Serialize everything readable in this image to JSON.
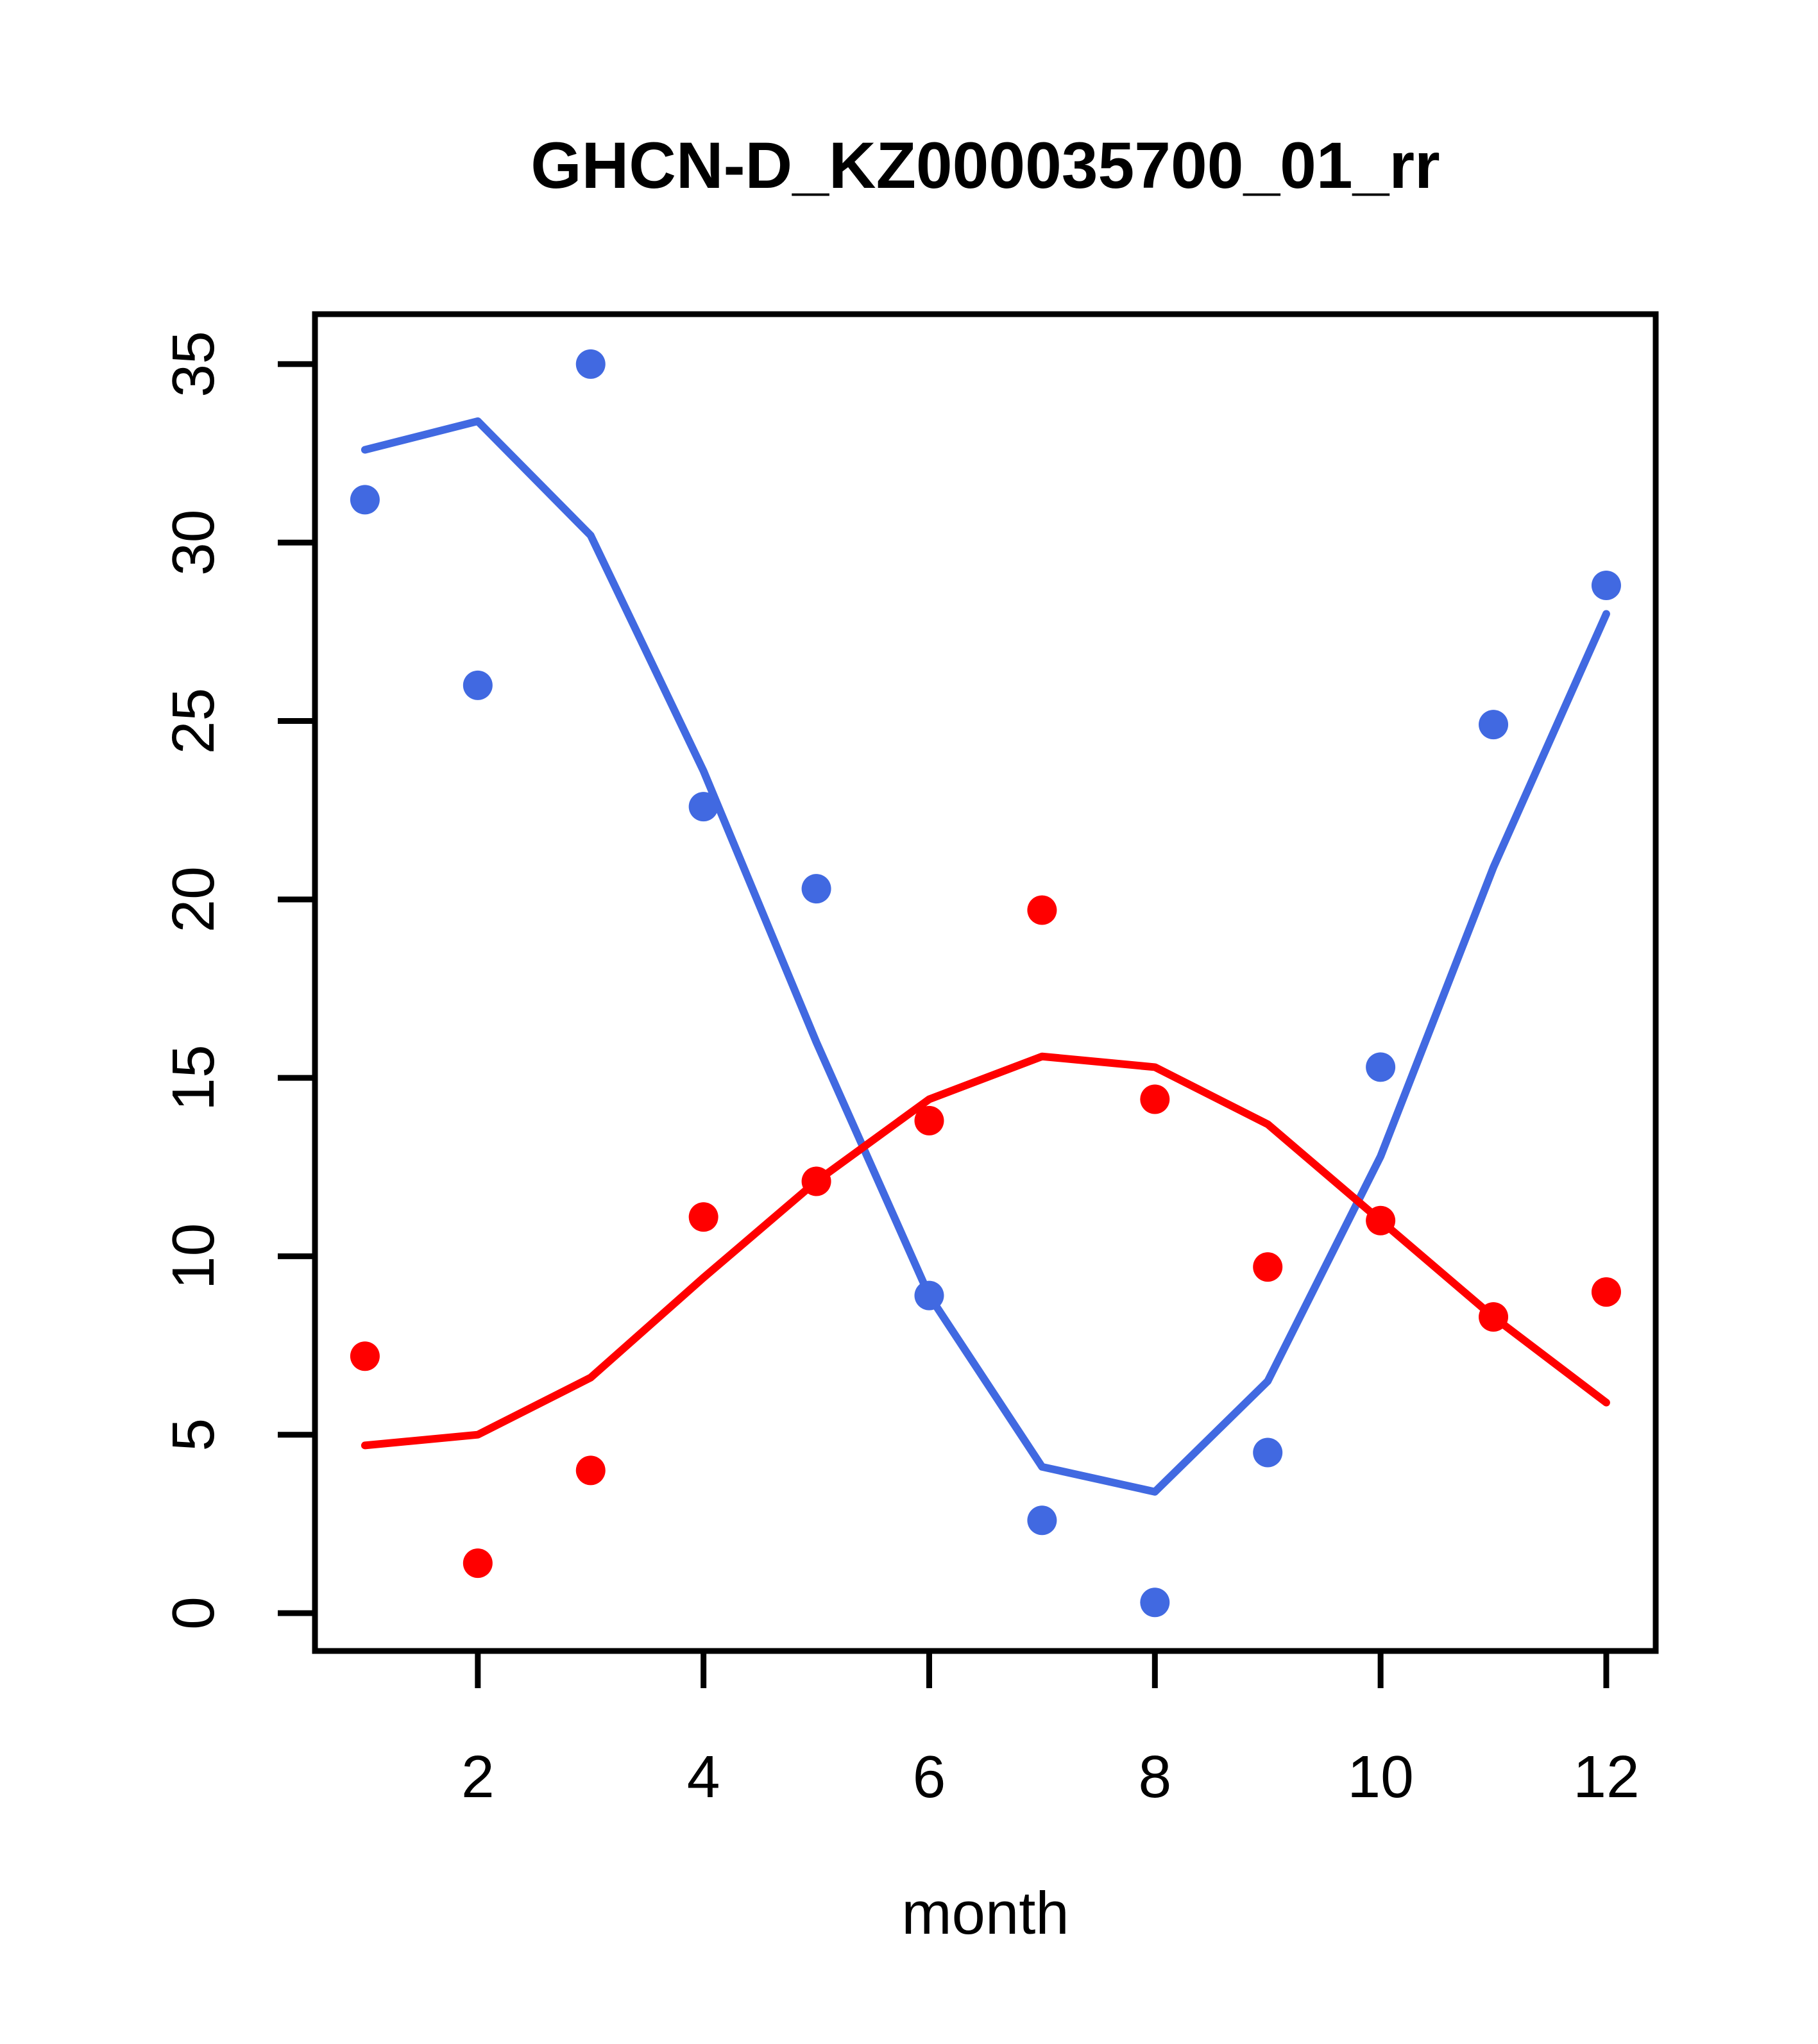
{
  "chart_data": {
    "type": "scatter",
    "title": "GHCN-D_KZ000035700_01_rr",
    "xlabel": "month",
    "ylabel": "",
    "categories": [
      1,
      2,
      3,
      4,
      5,
      6,
      7,
      8,
      9,
      10,
      11,
      12
    ],
    "xticks": [
      2,
      4,
      6,
      8,
      10,
      12
    ],
    "yticks": [
      0,
      5,
      10,
      15,
      20,
      25,
      30,
      35
    ],
    "xlim": [
      0.557,
      12.438
    ],
    "ylim": [
      -1.06,
      36.4
    ],
    "grid": false,
    "legend_position": "none",
    "colors": {
      "blue_series": "#4169E1",
      "red_series": "#FF0000",
      "axis": "#000000"
    },
    "series": [
      {
        "name": "blue-monthly-points",
        "kind": "points",
        "color": "#4169E1",
        "values": [
          31.2,
          26.0,
          35.0,
          22.6,
          20.3,
          8.9,
          2.6,
          0.3,
          4.5,
          15.3,
          24.9,
          28.8
        ]
      },
      {
        "name": "blue-smooth-line",
        "kind": "line",
        "color": "#4169E1",
        "values": [
          32.6,
          33.4,
          30.2,
          23.6,
          16.0,
          8.9,
          4.1,
          3.4,
          6.5,
          12.8,
          20.9,
          28.0
        ]
      },
      {
        "name": "red-monthly-points",
        "kind": "points",
        "color": "#FF0000",
        "values": [
          7.2,
          1.4,
          4.0,
          11.1,
          12.1,
          13.8,
          19.7,
          14.4,
          9.7,
          11.0,
          8.3,
          9.0
        ]
      },
      {
        "name": "red-smooth-line",
        "kind": "line",
        "color": "#FF0000",
        "values": [
          4.7,
          5.0,
          6.6,
          9.4,
          12.1,
          14.4,
          15.6,
          15.3,
          13.7,
          11.0,
          8.3,
          5.9
        ]
      }
    ]
  }
}
